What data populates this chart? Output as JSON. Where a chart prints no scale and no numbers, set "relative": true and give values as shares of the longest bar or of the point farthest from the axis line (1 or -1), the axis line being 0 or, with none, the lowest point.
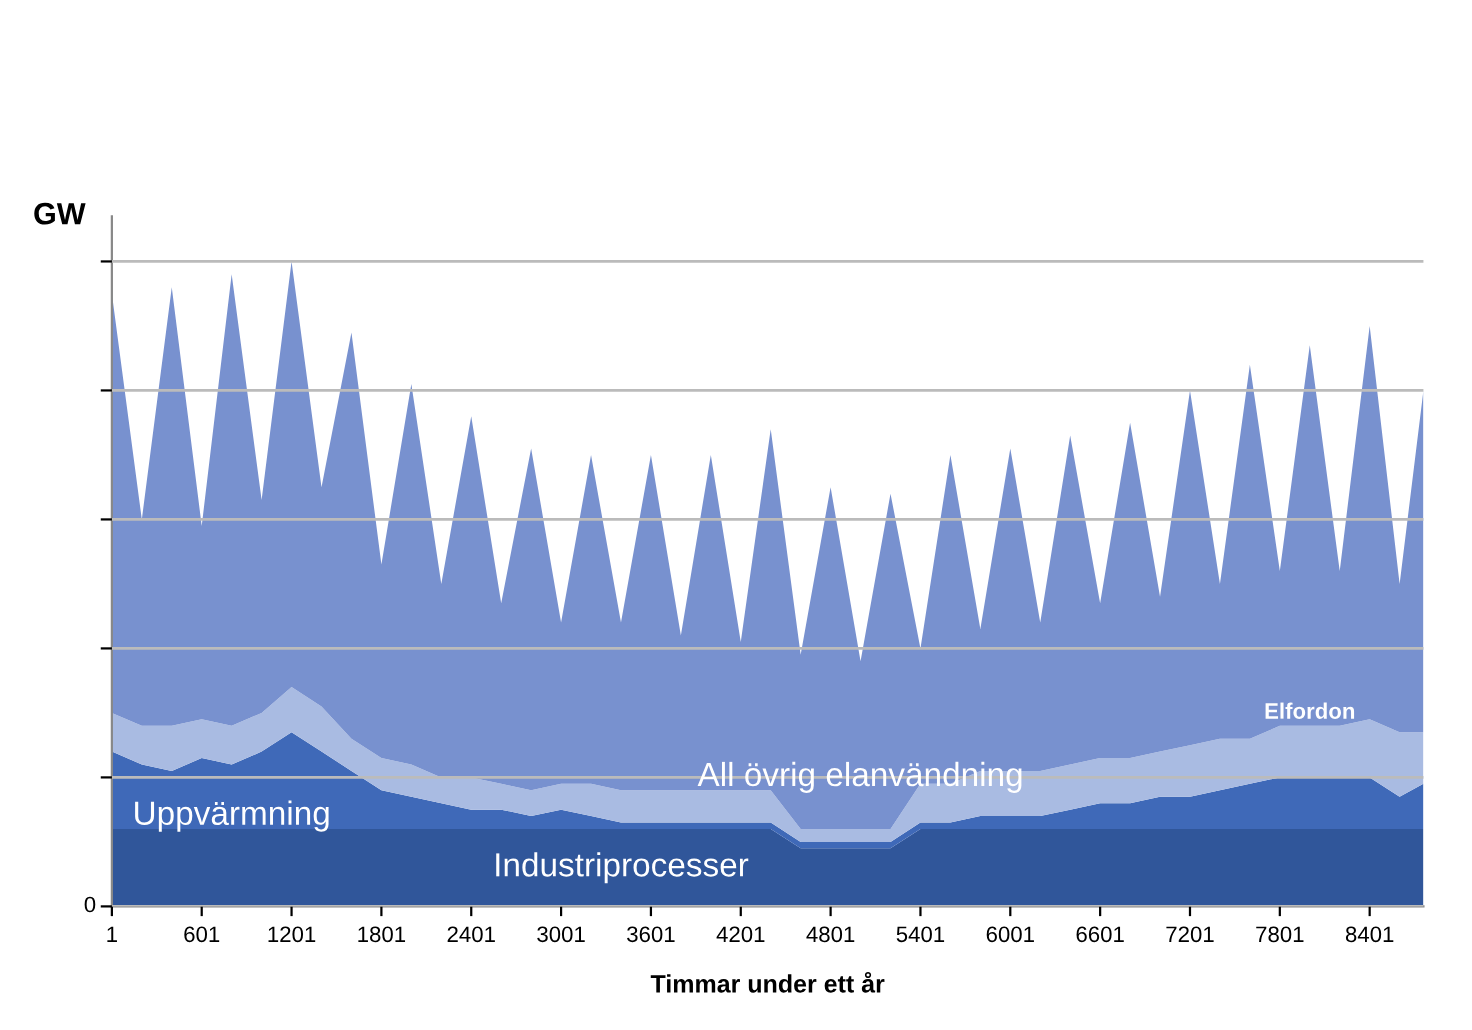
{
  "chart_data": {
    "type": "area",
    "stacked": true,
    "relative": true,
    "xlabel": "Timmar under ett år",
    "ylabel": "GW",
    "annotations": [
      "0"
    ],
    "grid": "y",
    "legend": false,
    "x": [
      1,
      201,
      401,
      601,
      801,
      1001,
      1201,
      1401,
      1601,
      1801,
      2001,
      2201,
      2401,
      2601,
      2801,
      3001,
      3201,
      3401,
      3601,
      3801,
      4001,
      4201,
      4401,
      4601,
      4801,
      5001,
      5201,
      5401,
      5601,
      5801,
      6001,
      6201,
      6401,
      6601,
      6801,
      7001,
      7201,
      7401,
      7601,
      7801,
      8001,
      8201,
      8401,
      8601,
      8760
    ],
    "xlim": [
      1,
      8760
    ],
    "xticks": [
      1,
      601,
      1201,
      1801,
      2401,
      3001,
      3601,
      4201,
      4801,
      5401,
      6001,
      6601,
      7201,
      7801,
      8401
    ],
    "series": [
      {
        "name": "Industriprocesser",
        "color": "#30569a",
        "values": [
          0.12,
          0.12,
          0.12,
          0.12,
          0.12,
          0.12,
          0.12,
          0.12,
          0.12,
          0.12,
          0.12,
          0.12,
          0.12,
          0.12,
          0.12,
          0.12,
          0.12,
          0.12,
          0.12,
          0.12,
          0.12,
          0.12,
          0.12,
          0.09,
          0.09,
          0.09,
          0.09,
          0.12,
          0.12,
          0.12,
          0.12,
          0.12,
          0.12,
          0.12,
          0.12,
          0.12,
          0.12,
          0.12,
          0.12,
          0.12,
          0.12,
          0.12,
          0.12,
          0.12,
          0.12
        ]
      },
      {
        "name": "Uppvärmning",
        "color": "#3f69b8",
        "values": [
          0.12,
          0.1,
          0.09,
          0.11,
          0.1,
          0.12,
          0.15,
          0.12,
          0.09,
          0.06,
          0.05,
          0.04,
          0.03,
          0.03,
          0.02,
          0.03,
          0.02,
          0.01,
          0.01,
          0.01,
          0.01,
          0.01,
          0.01,
          0.01,
          0.01,
          0.01,
          0.01,
          0.01,
          0.01,
          0.02,
          0.02,
          0.02,
          0.03,
          0.04,
          0.04,
          0.05,
          0.05,
          0.06,
          0.07,
          0.08,
          0.08,
          0.08,
          0.08,
          0.05,
          0.07
        ]
      },
      {
        "name": "Elfordon",
        "color": "#a9bbe2",
        "values": [
          0.06,
          0.06,
          0.07,
          0.06,
          0.06,
          0.06,
          0.07,
          0.07,
          0.05,
          0.05,
          0.05,
          0.04,
          0.05,
          0.04,
          0.04,
          0.04,
          0.05,
          0.05,
          0.05,
          0.05,
          0.05,
          0.05,
          0.05,
          0.02,
          0.02,
          0.02,
          0.02,
          0.06,
          0.06,
          0.07,
          0.07,
          0.07,
          0.07,
          0.07,
          0.07,
          0.07,
          0.08,
          0.08,
          0.07,
          0.08,
          0.08,
          0.08,
          0.09,
          0.1,
          0.08
        ]
      },
      {
        "name": "All övrig elanvändning",
        "color": "#7891cf",
        "values": [
          0.65,
          0.32,
          0.68,
          0.3,
          0.7,
          0.33,
          0.66,
          0.34,
          0.63,
          0.3,
          0.59,
          0.3,
          0.56,
          0.28,
          0.53,
          0.25,
          0.51,
          0.26,
          0.52,
          0.24,
          0.52,
          0.23,
          0.56,
          0.27,
          0.53,
          0.26,
          0.52,
          0.21,
          0.51,
          0.22,
          0.5,
          0.23,
          0.51,
          0.24,
          0.52,
          0.24,
          0.55,
          0.24,
          0.58,
          0.24,
          0.59,
          0.24,
          0.61,
          0.23,
          0.53
        ]
      }
    ]
  }
}
